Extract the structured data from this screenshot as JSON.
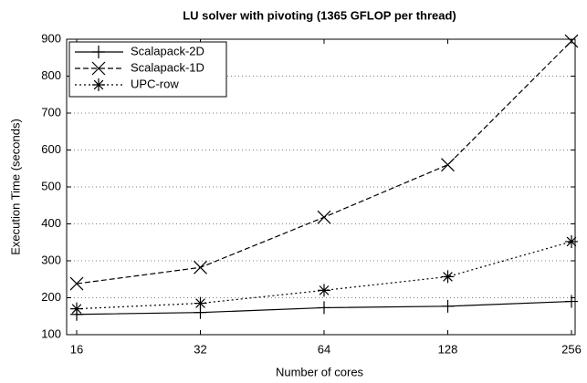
{
  "chart_data": {
    "type": "line",
    "title": "LU solver with pivoting (1365 GFLOP per thread)",
    "x_label": "Number of cores",
    "y_label": "Execution Time (seconds)",
    "categories": [
      "16",
      "32",
      "64",
      "128",
      "256"
    ],
    "series": [
      {
        "name": "Scalapack-2D",
        "color": "#000000",
        "dash": "solid",
        "marker": "plus",
        "values": [
          155,
          160,
          173,
          177,
          190
        ]
      },
      {
        "name": "Scalapack-1D",
        "color": "#000000",
        "dash": "dashed",
        "marker": "cross",
        "values": [
          238,
          282,
          418,
          560,
          895
        ]
      },
      {
        "name": "UPC-row",
        "color": "#000000",
        "dash": "dotted",
        "marker": "star",
        "values": [
          170,
          185,
          220,
          257,
          352
        ]
      }
    ],
    "ylim": [
      100,
      900
    ],
    "yticks": [
      100,
      200,
      300,
      400,
      500,
      600,
      700,
      800,
      900
    ],
    "grid": true,
    "legend": "upper left"
  }
}
